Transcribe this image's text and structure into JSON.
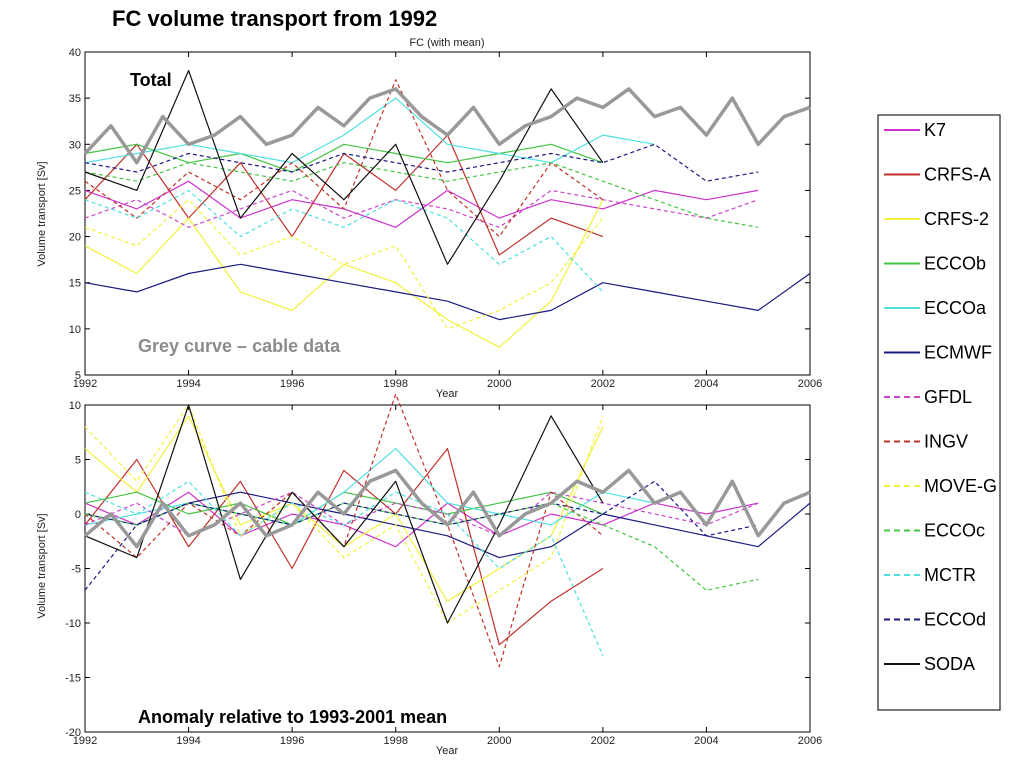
{
  "slide": {
    "title": "FC volume transport from 1992"
  },
  "chart_data": [
    {
      "type": "line",
      "title": "FC (with mean)",
      "xlabel": "Year",
      "ylabel": "Volume transport [Sv]",
      "xlim": [
        1992,
        2006
      ],
      "ylim": [
        5,
        40
      ],
      "xticks": [
        1992,
        1994,
        1996,
        1998,
        2000,
        2002,
        2004,
        2006
      ],
      "yticks": [
        5,
        10,
        15,
        20,
        25,
        30,
        35,
        40
      ],
      "grid": false,
      "annotations": [
        "Total",
        "Grey curve – cable data"
      ],
      "series": [
        {
          "name": "cable data",
          "x": [
            1992,
            1992.5,
            1993,
            1993.5,
            1994,
            1994.5,
            1995,
            1995.5,
            1996,
            1996.5,
            1997,
            1997.5,
            1998,
            1998.5,
            1999,
            1999.5,
            2000,
            2000.5,
            2001,
            2001.5,
            2002,
            2002.5,
            2003,
            2003.5,
            2004,
            2004.5,
            2005,
            2005.5,
            2006
          ],
          "y": [
            29,
            32,
            28,
            33,
            30,
            31,
            33,
            30,
            31,
            34,
            32,
            35,
            36,
            33,
            31,
            34,
            30,
            32,
            33,
            35,
            34,
            36,
            33,
            34,
            31,
            35,
            30,
            33,
            34
          ]
        },
        {
          "name": "K7",
          "x": [
            1992,
            1993,
            1994,
            1995,
            1996,
            1997,
            1998,
            1999,
            2000,
            2001,
            2002,
            2003,
            2004,
            2005
          ],
          "y": [
            25,
            23,
            26,
            22,
            24,
            23,
            21,
            25,
            22,
            24,
            23,
            25,
            24,
            25
          ]
        },
        {
          "name": "CRFS-A",
          "x": [
            1992,
            1993,
            1994,
            1995,
            1996,
            1997,
            1998,
            1999,
            2000,
            2001,
            2002
          ],
          "y": [
            24,
            30,
            22,
            28,
            20,
            29,
            25,
            31,
            18,
            22,
            20
          ]
        },
        {
          "name": "CRFS-2",
          "x": [
            1992,
            1993,
            1994,
            1995,
            1996,
            1997,
            1998,
            1999,
            2000,
            2001,
            2002
          ],
          "y": [
            19,
            16,
            22,
            14,
            12,
            17,
            15,
            11,
            8,
            13,
            24
          ]
        },
        {
          "name": "ECCOb",
          "x": [
            1992,
            1993,
            1994,
            1995,
            1996,
            1997,
            1998,
            1999,
            2000,
            2001,
            2002
          ],
          "y": [
            29,
            30,
            28,
            29,
            27,
            30,
            29,
            28,
            29,
            30,
            28
          ]
        },
        {
          "name": "ECCOa",
          "x": [
            1992,
            1993,
            1994,
            1995,
            1996,
            1997,
            1998,
            1999,
            2000,
            2001,
            2002,
            2003
          ],
          "y": [
            28,
            29,
            30,
            29,
            28,
            31,
            35,
            30,
            29,
            28,
            31,
            30
          ]
        },
        {
          "name": "ECMWF",
          "x": [
            1992,
            1993,
            1994,
            1995,
            1996,
            1997,
            1998,
            1999,
            2000,
            2001,
            2002,
            2003,
            2004,
            2005,
            2006
          ],
          "y": [
            15,
            14,
            16,
            17,
            16,
            15,
            14,
            13,
            11,
            12,
            15,
            14,
            13,
            12,
            16
          ]
        },
        {
          "name": "GFDL",
          "x": [
            1992,
            1993,
            1994,
            1995,
            1996,
            1997,
            1998,
            1999,
            2000,
            2001,
            2002,
            2003,
            2004,
            2005
          ],
          "y": [
            22,
            24,
            21,
            23,
            25,
            22,
            24,
            23,
            21,
            25,
            24,
            23,
            22,
            24
          ]
        },
        {
          "name": "INGV",
          "x": [
            1992,
            1993,
            1994,
            1995,
            1996,
            1997,
            1998,
            1999,
            2000,
            2001,
            2002
          ],
          "y": [
            26,
            22,
            27,
            24,
            28,
            23,
            37,
            25,
            20,
            28,
            24
          ]
        },
        {
          "name": "MOVE-G",
          "x": [
            1992,
            1993,
            1994,
            1995,
            1996,
            1997,
            1998,
            1999,
            2000,
            2001,
            2002
          ],
          "y": [
            21,
            19,
            24,
            18,
            20,
            17,
            19,
            10,
            12,
            15,
            22
          ]
        },
        {
          "name": "ECCOc",
          "x": [
            1992,
            1993,
            1994,
            1995,
            1996,
            1997,
            1998,
            1999,
            2000,
            2001,
            2002,
            2003,
            2004,
            2005
          ],
          "y": [
            27,
            26,
            28,
            27,
            26,
            28,
            27,
            26,
            27,
            28,
            26,
            24,
            22,
            21
          ]
        },
        {
          "name": "MCTR",
          "x": [
            1992,
            1993,
            1994,
            1995,
            1996,
            1997,
            1998,
            1999,
            2000,
            2001,
            2002
          ],
          "y": [
            24,
            22,
            25,
            20,
            23,
            21,
            24,
            22,
            17,
            20,
            14
          ]
        },
        {
          "name": "ECCOd",
          "x": [
            1992,
            1993,
            1994,
            1995,
            1996,
            1997,
            1998,
            1999,
            2000,
            2001,
            2002,
            2003,
            2004,
            2005
          ],
          "y": [
            28,
            27,
            29,
            28,
            27,
            29,
            28,
            27,
            28,
            29,
            28,
            30,
            26,
            27
          ]
        },
        {
          "name": "SODA",
          "x": [
            1992,
            1993,
            1994,
            1995,
            1996,
            1997,
            1998,
            1999,
            2000,
            2001,
            2002
          ],
          "y": [
            27,
            25,
            38,
            22,
            29,
            24,
            30,
            17,
            26,
            36,
            28
          ]
        }
      ]
    },
    {
      "type": "line",
      "title": "",
      "xlabel": "Year",
      "ylabel": "Volume transport [Sv]",
      "xlim": [
        1992,
        2006
      ],
      "ylim": [
        -20,
        10
      ],
      "xticks": [
        1992,
        1994,
        1996,
        1998,
        2000,
        2002,
        2004,
        2006
      ],
      "yticks": [
        -20,
        -15,
        -10,
        -5,
        0,
        5,
        10
      ],
      "grid": false,
      "annotations": [
        "Anomaly relative to 1993-2001 mean"
      ],
      "series": [
        {
          "name": "cable data",
          "x": [
            1992,
            1992.5,
            1993,
            1993.5,
            1994,
            1994.5,
            1995,
            1995.5,
            1996,
            1996.5,
            1997,
            1997.5,
            1998,
            1998.5,
            1999,
            1999.5,
            2000,
            2000.5,
            2001,
            2001.5,
            2002,
            2002.5,
            2003,
            2003.5,
            2004,
            2004.5,
            2005,
            2005.5,
            2006
          ],
          "y": [
            -2,
            0,
            -3,
            1,
            -2,
            -1,
            1,
            -2,
            -1,
            2,
            0,
            3,
            4,
            1,
            -1,
            2,
            -2,
            0,
            1,
            3,
            2,
            4,
            1,
            2,
            -1,
            3,
            -2,
            1,
            2
          ]
        },
        {
          "name": "K7",
          "x": [
            1992,
            1993,
            1994,
            1995,
            1996,
            1997,
            1998,
            1999,
            2000,
            2001,
            2002,
            2003,
            2004,
            2005
          ],
          "y": [
            1,
            -1,
            2,
            -2,
            0,
            -1,
            -3,
            1,
            -2,
            0,
            -1,
            1,
            0,
            1
          ]
        },
        {
          "name": "CRFS-A",
          "x": [
            1992,
            1993,
            1994,
            1995,
            1996,
            1997,
            1998,
            1999,
            2000,
            2001,
            2002
          ],
          "y": [
            -1,
            5,
            -3,
            3,
            -5,
            4,
            0,
            6,
            -12,
            -8,
            -5
          ]
        },
        {
          "name": "CRFS-2",
          "x": [
            1992,
            1993,
            1994,
            1995,
            1996,
            1997,
            1998,
            1999,
            2000,
            2001,
            2002
          ],
          "y": [
            6,
            2,
            9,
            -1,
            1,
            -3,
            0,
            -8,
            -5,
            -2,
            8
          ]
        },
        {
          "name": "ECCOb",
          "x": [
            1992,
            1993,
            1994,
            1995,
            1996,
            1997,
            1998,
            1999,
            2000,
            2001,
            2002
          ],
          "y": [
            1,
            2,
            0,
            1,
            -1,
            2,
            1,
            0,
            1,
            2,
            0
          ]
        },
        {
          "name": "ECCOa",
          "x": [
            1992,
            1993,
            1994,
            1995,
            1996,
            1997,
            1998,
            1999,
            2000,
            2001,
            2002,
            2003
          ],
          "y": [
            -1,
            0,
            1,
            0,
            -1,
            2,
            6,
            1,
            0,
            -1,
            2,
            1
          ]
        },
        {
          "name": "ECMWF",
          "x": [
            1992,
            1993,
            1994,
            1995,
            1996,
            1997,
            1998,
            1999,
            2000,
            2001,
            2002,
            2003,
            2004,
            2005,
            2006
          ],
          "y": [
            0,
            -1,
            1,
            2,
            1,
            0,
            -1,
            -2,
            -4,
            -3,
            0,
            -1,
            -2,
            -3,
            1
          ]
        },
        {
          "name": "GFDL",
          "x": [
            1992,
            1993,
            1994,
            1995,
            1996,
            1997,
            1998,
            1999,
            2000,
            2001,
            2002,
            2003,
            2004,
            2005
          ],
          "y": [
            -1,
            1,
            -2,
            0,
            2,
            -1,
            1,
            0,
            -2,
            2,
            1,
            0,
            -1,
            1
          ]
        },
        {
          "name": "INGV",
          "x": [
            1992,
            1993,
            1994,
            1995,
            1996,
            1997,
            1998,
            1999,
            2000,
            2001,
            2002
          ],
          "y": [
            0,
            -4,
            1,
            -2,
            2,
            -3,
            11,
            -1,
            -14,
            2,
            -2
          ]
        },
        {
          "name": "MOVE-G",
          "x": [
            1992,
            1993,
            1994,
            1995,
            1996,
            1997,
            1998,
            1999,
            2000,
            2001,
            2002
          ],
          "y": [
            8,
            3,
            10,
            -2,
            1,
            -4,
            -1,
            -10,
            -7,
            -4,
            9
          ]
        },
        {
          "name": "ECCOc",
          "x": [
            1992,
            1993,
            1994,
            1995,
            1996,
            1997,
            1998,
            1999,
            2000,
            2001,
            2002,
            2003,
            2004,
            2005
          ],
          "y": [
            0,
            -1,
            1,
            0,
            -1,
            1,
            0,
            -1,
            0,
            1,
            -1,
            -3,
            -7,
            -6
          ]
        },
        {
          "name": "MCTR",
          "x": [
            1992,
            1993,
            1994,
            1995,
            1996,
            1997,
            1998,
            1999,
            2000,
            2001,
            2002
          ],
          "y": [
            2,
            0,
            3,
            -2,
            1,
            -1,
            2,
            0,
            -5,
            -2,
            -13
          ]
        },
        {
          "name": "ECCOd",
          "x": [
            1992,
            1993,
            1994,
            1995,
            1996,
            1997,
            1998,
            1999,
            2000,
            2001,
            2002,
            2003,
            2004,
            2005
          ],
          "y": [
            -7,
            -1,
            1,
            0,
            -1,
            1,
            0,
            -1,
            0,
            1,
            0,
            3,
            -2,
            -1
          ]
        },
        {
          "name": "SODA",
          "x": [
            1992,
            1993,
            1994,
            1995,
            1996,
            1997,
            1998,
            1999,
            2000,
            2001,
            2002
          ],
          "y": [
            -2,
            -4,
            10,
            -6,
            2,
            -3,
            3,
            -10,
            -1,
            9,
            1
          ]
        }
      ]
    }
  ],
  "legend": {
    "items": [
      {
        "name": "K7",
        "color": "#cc33cc",
        "dash": "solid"
      },
      {
        "name": "CRFS-A",
        "color": "#c0302a",
        "dash": "solid"
      },
      {
        "name": "CRFS-2",
        "color": "#f2f23a",
        "dash": "solid"
      },
      {
        "name": "ECCOb",
        "color": "#44c444",
        "dash": "solid"
      },
      {
        "name": "ECCOa",
        "color": "#4fe0e0",
        "dash": "solid"
      },
      {
        "name": "ECMWF",
        "color": "#1a1a80",
        "dash": "solid"
      },
      {
        "name": "GFDL",
        "color": "#cc44cc",
        "dash": "dashed"
      },
      {
        "name": "INGV",
        "color": "#c0302a",
        "dash": "dashed"
      },
      {
        "name": "MOVE-G",
        "color": "#f2f23a",
        "dash": "dashed"
      },
      {
        "name": "ECCOc",
        "color": "#44c444",
        "dash": "dashed"
      },
      {
        "name": "MCTR",
        "color": "#4fe0e0",
        "dash": "dashed"
      },
      {
        "name": "ECCOd",
        "color": "#1a1a80",
        "dash": "dashed"
      },
      {
        "name": "SODA",
        "color": "#111111",
        "dash": "solid"
      }
    ]
  },
  "colors": {
    "cable": "#999999",
    "background": "#ffffff",
    "axis": "#000000"
  }
}
